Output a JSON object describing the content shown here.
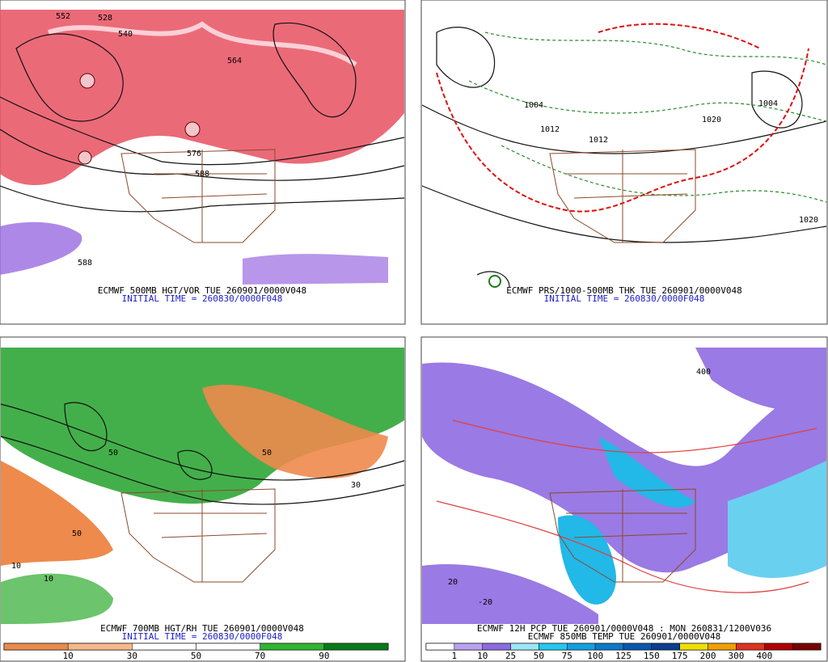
{
  "panels": [
    {
      "line1": "ECMWF 500MB HGT/VOR TUE 260901/0000V048",
      "line2": "INITIAL TIME = 260830/0000F048",
      "contour_labels": [
        "552",
        "528",
        "540",
        "564",
        "576",
        "588",
        "588"
      ]
    },
    {
      "line1": "ECMWF PRS/1000-500MB THK TUE 260901/0000V048",
      "line2": "INITIAL TIME = 260830/0000F048",
      "contour_labels": [
        "1004",
        "1012",
        "1012",
        "1020",
        "1020",
        "1004"
      ]
    },
    {
      "line1": "ECMWF 700MB HGT/RH TUE 260901/0000V048",
      "line2": "INITIAL TIME = 260830/0000F048",
      "contour_labels": [
        "50",
        "10",
        "10",
        "50",
        "50",
        "30"
      ],
      "colorbar": {
        "colors": [
          "#e98b4d",
          "#f6b98a",
          "#ffffff",
          "#ffffff",
          "#2fb52f",
          "#097a18"
        ],
        "labels": [
          "10",
          "30",
          "50",
          "70",
          "90"
        ]
      }
    },
    {
      "line1": "ECMWF 12H PCP TUE 260901/0000V048 : MON 260831/1200V036",
      "line2": "ECMWF 850MB TEMP TUE 260901/0000V048",
      "contour_labels": [
        "20",
        "-20",
        "400"
      ],
      "colorbar": {
        "colors": [
          "#ffffff",
          "#b9a3f0",
          "#8c6ae0",
          "#9be7f7",
          "#22c8f0",
          "#10a0e0",
          "#0a7ac8",
          "#0858b0",
          "#0a3e90",
          "#f0e000",
          "#f0a000",
          "#e03020",
          "#b00000",
          "#780000"
        ],
        "labels": [
          "1",
          "10",
          "25",
          "50",
          "75",
          "100",
          "125",
          "150",
          "175",
          "200",
          "300",
          "400"
        ]
      }
    }
  ]
}
